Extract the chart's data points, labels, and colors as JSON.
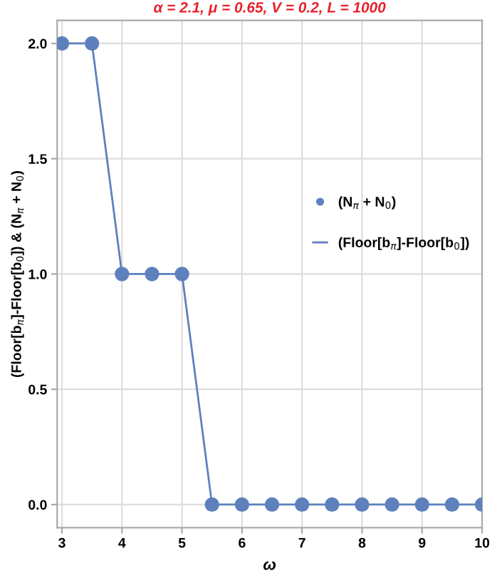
{
  "chart_data": {
    "type": "line",
    "title": "α = 2.1, μ = 0.65, V = 0.2, L = 1000",
    "xlabel": "ω",
    "ylabel": "(Floor[b$_{π}$]-Floor[b$_{0}$]) & (N$_{π}$ + N$_{0}$)",
    "x": [
      3,
      3.5,
      4,
      4.5,
      5,
      5.5,
      6,
      6.5,
      7,
      7.5,
      8,
      8.5,
      9,
      9.5,
      10
    ],
    "series": [
      {
        "name": "(N$_{π}$ + N$_{0}$)",
        "type": "scatter",
        "marker": "circle",
        "color": "#5e81bd",
        "values": [
          2,
          2,
          1,
          1,
          1,
          0,
          0,
          0,
          0,
          0,
          0,
          0,
          0,
          0,
          0
        ]
      },
      {
        "name": "(Floor[b$_{π}$]-Floor[b$_{0}$])",
        "color": "#5e81bd",
        "values": [
          2,
          2,
          1,
          1,
          1,
          0,
          0,
          0,
          0,
          0,
          0,
          0,
          0,
          0,
          0
        ]
      }
    ],
    "xlim": [
      2.92,
      10
    ],
    "ylim": [
      -0.1,
      2.1
    ],
    "xticks": [
      3,
      4,
      5,
      6,
      7,
      8,
      9,
      10
    ],
    "yticks": [
      {
        "value": 0,
        "label": "0.0"
      },
      {
        "value": 0.5,
        "label": "0.5"
      },
      {
        "value": 1,
        "label": "1.0"
      },
      {
        "value": 1.5,
        "label": "1.5"
      },
      {
        "value": 2,
        "label": "2.0"
      }
    ],
    "grid": true,
    "legend": "right"
  }
}
